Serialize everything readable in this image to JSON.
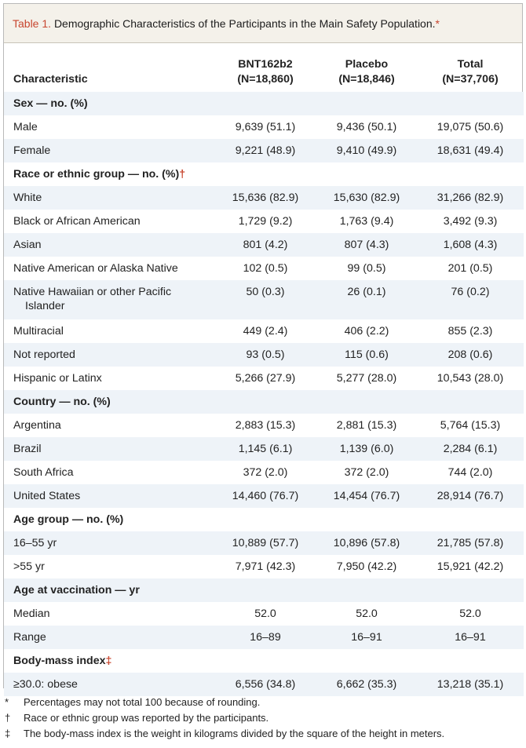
{
  "caption": {
    "label": "Table 1.",
    "title": "Demographic Characteristics of the Participants in the Main Safety Population.",
    "mark": "*"
  },
  "header": {
    "characteristic": "Characteristic",
    "columns": [
      {
        "name": "BNT162b2",
        "n": "(N=18,860)"
      },
      {
        "name": "Placebo",
        "n": "(N=18,846)"
      },
      {
        "name": "Total",
        "n": "(N=37,706)"
      }
    ]
  },
  "rows": [
    {
      "label": "Sex — no. (%)",
      "section": true,
      "mark": ""
    },
    {
      "label": "Male",
      "values": [
        "9,639 (51.1)",
        "9,436 (50.1)",
        "19,075 (50.6)"
      ]
    },
    {
      "label": "Female",
      "values": [
        "9,221 (48.9)",
        "9,410 (49.9)",
        "18,631 (49.4)"
      ]
    },
    {
      "label": "Race or ethnic group — no. (%)",
      "section": true,
      "mark": "†"
    },
    {
      "label": "White",
      "values": [
        "15,636 (82.9)",
        "15,630 (82.9)",
        "31,266 (82.9)"
      ]
    },
    {
      "label": "Black or African American",
      "values": [
        "1,729 (9.2)",
        "1,763 (9.4)",
        "3,492 (9.3)"
      ]
    },
    {
      "label": "Asian",
      "values": [
        "801 (4.2)",
        "807 (4.3)",
        "1,608 (4.3)"
      ]
    },
    {
      "label": "Native American or Alaska Native",
      "values": [
        "102 (0.5)",
        "99 (0.5)",
        "201 (0.5)"
      ]
    },
    {
      "label": "Native Hawaiian or other Pacific",
      "label2": "Islander",
      "values": [
        "50 (0.3)",
        "26 (0.1)",
        "76 (0.2)"
      ]
    },
    {
      "label": "Multiracial",
      "values": [
        "449 (2.4)",
        "406 (2.2)",
        "855 (2.3)"
      ]
    },
    {
      "label": "Not reported",
      "values": [
        "93 (0.5)",
        "115 (0.6)",
        "208 (0.6)"
      ]
    },
    {
      "label": "Hispanic or Latinx",
      "values": [
        "5,266 (27.9)",
        "5,277 (28.0)",
        "10,543 (28.0)"
      ]
    },
    {
      "label": "Country — no. (%)",
      "section": true,
      "mark": ""
    },
    {
      "label": "Argentina",
      "values": [
        "2,883 (15.3)",
        "2,881 (15.3)",
        "5,764 (15.3)"
      ]
    },
    {
      "label": "Brazil",
      "values": [
        "1,145 (6.1)",
        "1,139 (6.0)",
        "2,284 (6.1)"
      ]
    },
    {
      "label": "South Africa",
      "values": [
        "372 (2.0)",
        "372 (2.0)",
        "744 (2.0)"
      ]
    },
    {
      "label": "United States",
      "values": [
        "14,460 (76.7)",
        "14,454 (76.7)",
        "28,914 (76.7)"
      ]
    },
    {
      "label": "Age group — no. (%)",
      "section": true,
      "mark": ""
    },
    {
      "label": "16–55 yr",
      "values": [
        "10,889 (57.7)",
        "10,896 (57.8)",
        "21,785 (57.8)"
      ]
    },
    {
      "label": ">55 yr",
      "values": [
        "7,971 (42.3)",
        "7,950 (42.2)",
        "15,921 (42.2)"
      ]
    },
    {
      "label": "Age at vaccination — yr",
      "section": true,
      "mark": ""
    },
    {
      "label": "Median",
      "values": [
        "52.0",
        "52.0",
        "52.0"
      ]
    },
    {
      "label": "Range",
      "values": [
        "16–89",
        "16–91",
        "16–91"
      ]
    },
    {
      "label": "Body-mass index",
      "section": true,
      "mark": "‡"
    },
    {
      "label": "≥30.0: obese",
      "values": [
        "6,556 (34.8)",
        "6,662 (35.3)",
        "13,218 (35.1)"
      ]
    }
  ],
  "footnotes": [
    {
      "mark": "*",
      "text": "Percentages may not total 100 because of rounding."
    },
    {
      "mark": "†",
      "text": "Race or ethnic group was reported by the participants."
    },
    {
      "mark": "‡",
      "text": "The body-mass index is the weight in kilograms divided by the square of the height in meters."
    }
  ]
}
